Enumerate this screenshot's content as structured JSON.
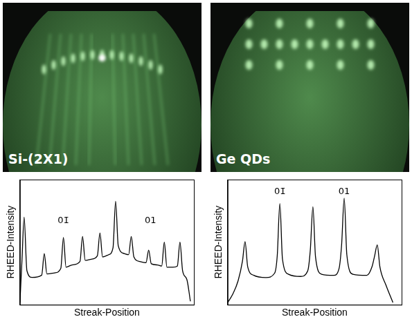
{
  "photos": [
    {
      "label": "Si-(2X1)"
    },
    {
      "label": "Ge QDs"
    }
  ],
  "chart_data": [
    {
      "type": "line",
      "x_label": "Streak-Position",
      "y_label": "RHEED-Intensity",
      "x": [
        0,
        1.2,
        2.4,
        4,
        7,
        12.5,
        14,
        15.5,
        20,
        23.5,
        25,
        26.5,
        30,
        34.5,
        36,
        37.5,
        41,
        44.5,
        46,
        47.5,
        51,
        53.5,
        55,
        56.5,
        60,
        62.5,
        64,
        65.5,
        69,
        72.5,
        74,
        75.5,
        79,
        81.5,
        83,
        84.5,
        88,
        90.5,
        92,
        93.5,
        96,
        98
      ],
      "values": [
        2,
        40,
        77,
        30,
        24,
        26,
        45,
        27,
        28,
        32,
        59,
        33,
        35,
        38,
        60,
        39,
        40,
        43,
        63,
        42,
        44,
        50,
        91,
        52,
        45,
        44,
        60,
        42,
        38,
        37,
        48,
        36,
        35,
        34,
        55,
        33,
        33,
        34,
        55,
        30,
        22,
        3
      ],
      "color": "#000000",
      "xlim": [
        0,
        100
      ],
      "ylim": [
        0,
        110
      ],
      "grid": false,
      "tick_labels": false,
      "annotations": [
        {
          "text": "01̄",
          "x": 25,
          "y": 74
        },
        {
          "text": "01",
          "x": 75,
          "y": 74
        }
      ]
    },
    {
      "type": "line",
      "x_label": "Streak-Position",
      "y_label": "RHEED-Intensity",
      "x": [
        0,
        3,
        6,
        8.5,
        10,
        11.5,
        15,
        22,
        27,
        28.5,
        30,
        31.5,
        35,
        42,
        46,
        47.5,
        49,
        50.5,
        54,
        61,
        64,
        65.5,
        67,
        68.5,
        72,
        80,
        83,
        84.5,
        86,
        87.5,
        91,
        95
      ],
      "values": [
        2,
        10,
        22,
        40,
        58,
        35,
        27,
        25,
        29,
        45,
        93,
        42,
        28,
        26,
        31,
        50,
        90,
        44,
        28,
        27,
        33,
        55,
        98,
        46,
        28,
        27,
        35,
        45,
        55,
        35,
        18,
        2
      ],
      "color": "#000000",
      "xlim": [
        0,
        100
      ],
      "ylim": [
        0,
        115
      ],
      "grid": false,
      "tick_labels": false,
      "annotations": [
        {
          "text": "01̄",
          "x": 30,
          "y": 104
        },
        {
          "text": "01",
          "x": 67,
          "y": 104
        }
      ]
    }
  ]
}
